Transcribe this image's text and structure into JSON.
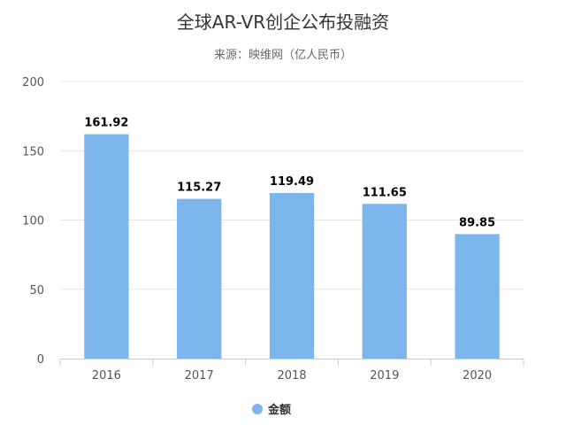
{
  "chart_data": {
    "type": "bar",
    "title": "全球AR-VR创企公布投融资",
    "subtitle": "来源：映维网（亿人民币）",
    "categories": [
      "2016",
      "2017",
      "2018",
      "2019",
      "2020"
    ],
    "series": [
      {
        "name": "金额",
        "values": [
          161.92,
          115.27,
          119.49,
          111.65,
          89.85
        ],
        "color": "#7cb5ec"
      }
    ],
    "data_labels": [
      "161.92",
      "115.27",
      "119.49",
      "111.65",
      "89.85"
    ],
    "ylim": [
      0,
      200
    ],
    "yticks": [
      "0",
      "50",
      "100",
      "150",
      "200"
    ],
    "grid": true,
    "legend_position": "bottom-center"
  }
}
